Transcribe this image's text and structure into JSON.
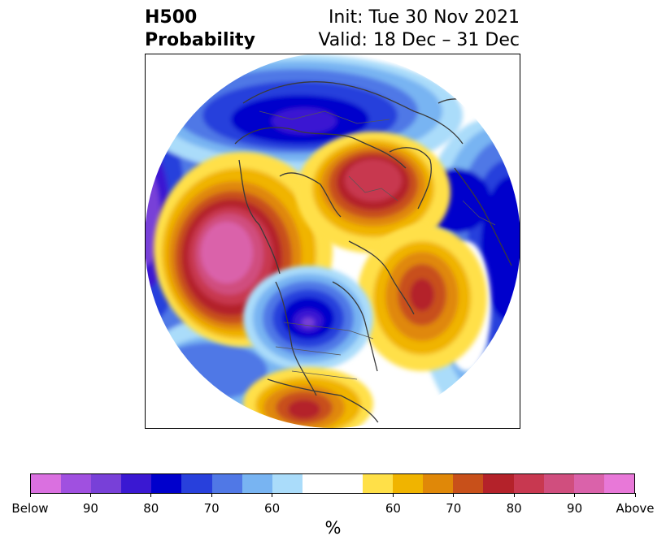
{
  "title": {
    "left_line1": "H500",
    "left_line2": "Probability",
    "right_line1": "Init: Tue 30 Nov 2021",
    "right_line2": "Valid: 18 Dec – 31 Dec"
  },
  "map": {
    "projection": "north polar stereographic",
    "features": [
      "coastlines",
      "country borders",
      "state/province borders"
    ],
    "anomaly_centers": [
      {
        "region": "Bering Sea / Gulf of Alaska",
        "type": "above",
        "peak_class": "Above"
      },
      {
        "region": "Western Europe",
        "type": "above",
        "peak_class": "80"
      },
      {
        "region": "Central Asia / Siberia",
        "type": "above",
        "peak_class": "80"
      },
      {
        "region": "Central Canada",
        "type": "below",
        "peak_class": "90"
      },
      {
        "region": "North Pacific near Japan",
        "type": "below",
        "peak_class": "80"
      },
      {
        "region": "Central Atlantic",
        "type": "below",
        "peak_class": "80"
      },
      {
        "region": "Southern United States",
        "type": "above",
        "peak_class": "80"
      }
    ]
  },
  "colorbar": {
    "unit_label": "%",
    "colors": [
      "#da70e0",
      "#a050e0",
      "#7840d8",
      "#3a18d2",
      "#0000cc",
      "#2840dc",
      "#5078e6",
      "#78b4f2",
      "#aadcfa",
      "#ffffff",
      "#ffffff",
      "#ffe048",
      "#f0b400",
      "#e08808",
      "#c8501a",
      "#b4222a",
      "#c83850",
      "#d04e7e",
      "#da62aa",
      "#e878d8"
    ],
    "tick_labels": [
      "Below",
      "90",
      "80",
      "70",
      "60",
      "60",
      "70",
      "80",
      "90",
      "Above"
    ]
  }
}
